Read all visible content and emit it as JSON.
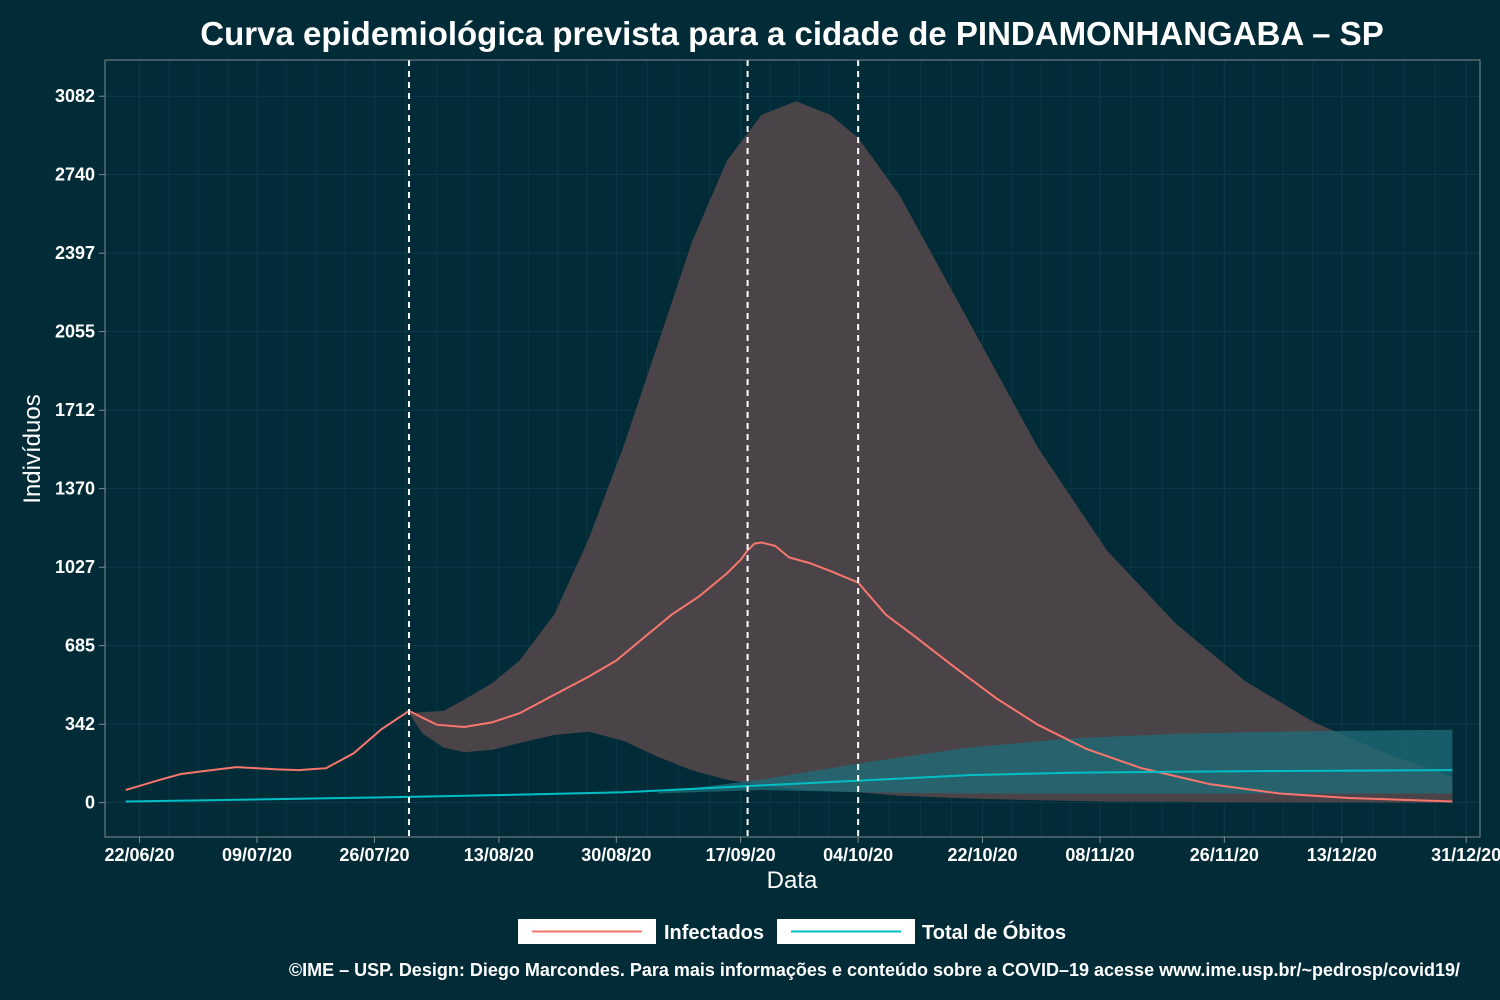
{
  "chart_data": {
    "type": "line",
    "title": "Curva epidemiológica prevista para a cidade de PINDAMONHANGABA – SP",
    "xlabel": "Data",
    "ylabel": "Indivíduos",
    "x_ticks": [
      "22/06/20",
      "09/07/20",
      "26/07/20",
      "13/08/20",
      "30/08/20",
      "17/09/20",
      "04/10/20",
      "22/10/20",
      "08/11/20",
      "26/11/20",
      "13/12/20",
      "31/12/20"
    ],
    "y_ticks": [
      0,
      342,
      685,
      1027,
      1370,
      1712,
      2055,
      2397,
      2740,
      3082
    ],
    "ylim": [
      -150,
      3240
    ],
    "x_day_range": [
      -5,
      194
    ],
    "vlines_day": [
      39,
      88,
      104
    ],
    "series": [
      {
        "name": "Infectados",
        "color": "#f8766d",
        "day": [
          -2,
          3,
          6,
          10,
          14,
          17,
          20,
          23,
          27,
          31,
          35,
          39,
          41,
          43,
          47,
          51,
          55,
          60,
          65,
          69,
          73,
          77,
          81,
          85,
          87,
          88,
          89,
          90,
          92,
          94,
          97,
          100,
          104,
          108,
          112,
          118,
          124,
          130,
          137,
          145,
          155,
          165,
          175,
          190
        ],
        "values": [
          55,
          100,
          125,
          140,
          155,
          150,
          145,
          142,
          150,
          215,
          320,
          400,
          370,
          340,
          330,
          350,
          390,
          470,
          550,
          620,
          720,
          820,
          900,
          1000,
          1060,
          1100,
          1130,
          1135,
          1120,
          1070,
          1045,
          1010,
          960,
          820,
          730,
          590,
          455,
          340,
          235,
          150,
          80,
          40,
          20,
          5
        ]
      },
      {
        "name": "Total de Óbitos",
        "color": "#00bfc4",
        "day": [
          -2,
          10,
          25,
          39,
          55,
          70,
          80,
          90,
          100,
          110,
          120,
          135,
          150,
          165,
          180,
          190
        ],
        "values": [
          5,
          10,
          18,
          25,
          35,
          45,
          60,
          75,
          90,
          105,
          120,
          130,
          135,
          138,
          140,
          142
        ]
      }
    ],
    "bands": [
      {
        "series": "Infectados",
        "color": "#4a4449",
        "day": [
          39,
          41,
          44,
          47,
          51,
          55,
          60,
          65,
          70,
          75,
          80,
          85,
          90,
          95,
          100,
          104,
          110,
          120,
          130,
          140,
          150,
          160,
          170,
          180,
          190
        ],
        "upper": [
          390,
          395,
          400,
          450,
          520,
          620,
          820,
          1150,
          1550,
          2000,
          2450,
          2800,
          3000,
          3060,
          3000,
          2900,
          2650,
          2100,
          1550,
          1100,
          780,
          530,
          350,
          220,
          110
        ],
        "lower": [
          390,
          300,
          240,
          220,
          230,
          260,
          295,
          310,
          270,
          200,
          140,
          100,
          75,
          60,
          50,
          45,
          30,
          18,
          10,
          5,
          3,
          2,
          1,
          0,
          0
        ]
      },
      {
        "series": "Total de Óbitos",
        "color": "#1e6e7a",
        "day": [
          75,
          90,
          105,
          120,
          135,
          150,
          165,
          180,
          190
        ],
        "upper": [
          45,
          100,
          175,
          240,
          280,
          300,
          310,
          315,
          318
        ],
        "lower": [
          40,
          55,
          45,
          40,
          38,
          38,
          40,
          40,
          40
        ]
      }
    ],
    "legend": {
      "placement": "bottom",
      "items": [
        {
          "label": "Infectados",
          "color": "#f8766d"
        },
        {
          "label": "Total de Óbitos",
          "color": "#00bfc4"
        }
      ]
    },
    "caption": "©IME – USP. Design: Diego Marcondes. Para mais informações e conteúdo sobre a COVID–19 acesse www.ime.usp.br/~pedrosp/covid19/",
    "colors": {
      "background": "#022b38",
      "grid": "#0d3a47",
      "vline": "#ffffff"
    }
  }
}
